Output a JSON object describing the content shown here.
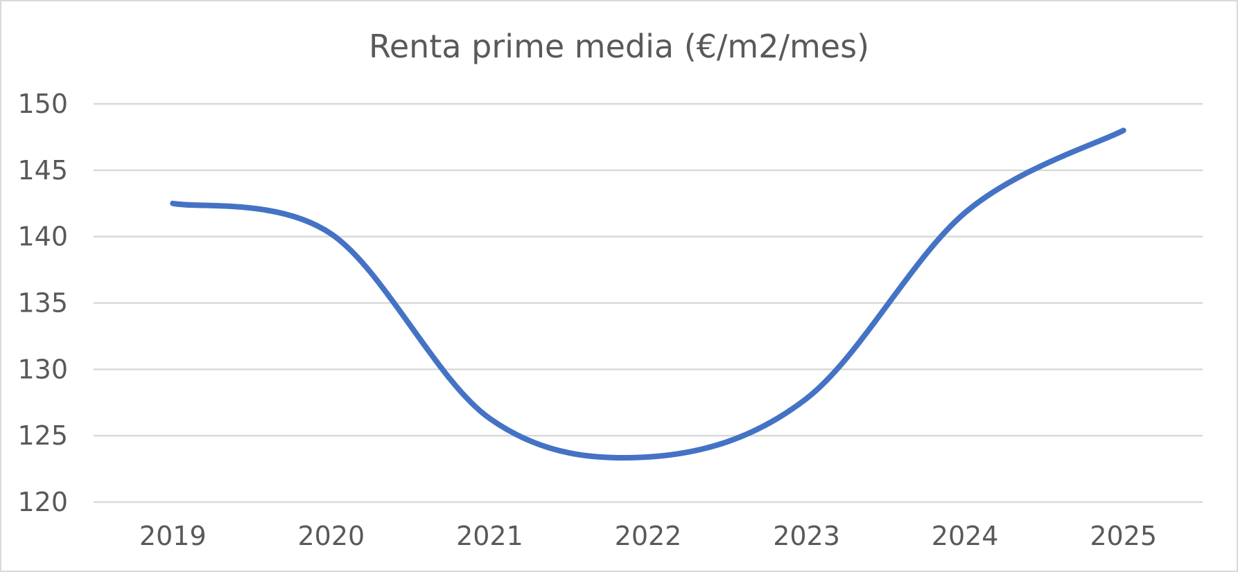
{
  "chart_data": {
    "type": "line",
    "title": "Renta prime media (€/m2/mes)",
    "categories": [
      "2019",
      "2020",
      "2021",
      "2022",
      "2023",
      "2024",
      "2025"
    ],
    "series": [
      {
        "values": [
          142.5,
          140.2,
          126.3,
          123.4,
          127.8,
          141.8,
          148.0
        ],
        "color": "#4472c4"
      }
    ],
    "yticks": [
      "120",
      "125",
      "130",
      "135",
      "140",
      "145",
      "150"
    ],
    "ylim": [
      120,
      150
    ],
    "smooth": true,
    "grid": true,
    "legend": "none"
  }
}
